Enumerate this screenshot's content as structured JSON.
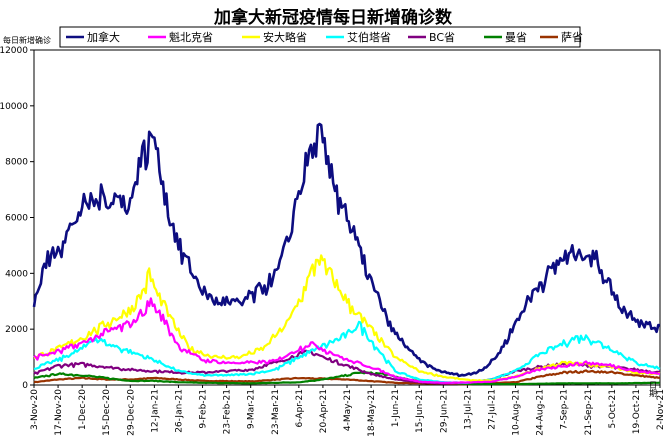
{
  "chart_data": {
    "type": "line",
    "title": "加拿大新冠疫情每日新增确诊数",
    "ylabel": "每日新增确诊",
    "xlabel": "日期",
    "ylim": [
      0,
      12000
    ],
    "yticks": [
      0,
      2000,
      4000,
      6000,
      8000,
      10000,
      12000
    ],
    "xrange": [
      "2020-11-03",
      "2021-11-02"
    ],
    "xtick_labels": [
      "3-Nov-20",
      "17-Nov-20",
      "1-Dec-20",
      "15-Dec-20",
      "29-Dec-20",
      "12-Jan-21",
      "26-Jan-21",
      "9-Feb-21",
      "23-Feb-21",
      "9-Mar-21",
      "23-Mar-21",
      "6-Apr-21",
      "20-Apr-21",
      "4-May-21",
      "18-May-21",
      "1-Jun-21",
      "15-Jun-21",
      "29-Jun-21",
      "13-Jul-21",
      "27-Jul-21",
      "10-Aug-21",
      "24-Aug-21",
      "7-Sep-21",
      "21-Sep-21",
      "5-Oct-21",
      "19-Oct-21",
      "2-Nov-21"
    ],
    "grid": false,
    "legend": "top",
    "series": [
      {
        "name": "加拿大",
        "color": "#0d0d80",
        "x": [
          "2020-11-03",
          "2020-11-10",
          "2020-11-17",
          "2020-11-24",
          "2020-12-01",
          "2020-12-08",
          "2020-12-15",
          "2020-12-22",
          "2020-12-29",
          "2021-01-03",
          "2021-01-08",
          "2021-01-12",
          "2021-01-19",
          "2021-01-26",
          "2021-02-02",
          "2021-02-09",
          "2021-02-16",
          "2021-02-23",
          "2021-03-02",
          "2021-03-09",
          "2021-03-16",
          "2021-03-23",
          "2021-03-30",
          "2021-04-06",
          "2021-04-13",
          "2021-04-18",
          "2021-04-25",
          "2021-05-02",
          "2021-05-09",
          "2021-05-16",
          "2021-05-23",
          "2021-05-30",
          "2021-06-06",
          "2021-06-13",
          "2021-06-20",
          "2021-06-27",
          "2021-07-04",
          "2021-07-11",
          "2021-07-18",
          "2021-07-25",
          "2021-08-01",
          "2021-08-08",
          "2021-08-15",
          "2021-08-22",
          "2021-08-29",
          "2021-09-05",
          "2021-09-12",
          "2021-09-19",
          "2021-09-26",
          "2021-10-03",
          "2021-10-10",
          "2021-10-17",
          "2021-10-24",
          "2021-11-02"
        ],
        "values": [
          3000,
          4400,
          5000,
          5600,
          6400,
          6600,
          6800,
          6700,
          6500,
          8000,
          8500,
          9000,
          6600,
          5000,
          4200,
          3400,
          3000,
          3000,
          2900,
          3200,
          3500,
          3900,
          5000,
          7000,
          8400,
          9000,
          7400,
          6500,
          5200,
          4000,
          3000,
          2000,
          1500,
          1000,
          700,
          500,
          400,
          350,
          450,
          700,
          1200,
          2000,
          2800,
          3500,
          4000,
          4500,
          4700,
          4800,
          4500,
          3700,
          2800,
          2500,
          2200,
          2000
        ]
      },
      {
        "name": "魁北克省",
        "color": "#ff00ff",
        "x": [
          "2020-11-03",
          "2020-11-17",
          "2020-12-01",
          "2020-12-15",
          "2020-12-29",
          "2021-01-05",
          "2021-01-10",
          "2021-01-19",
          "2021-01-26",
          "2021-02-09",
          "2021-02-23",
          "2021-03-09",
          "2021-03-23",
          "2021-04-06",
          "2021-04-13",
          "2021-04-20",
          "2021-05-04",
          "2021-05-18",
          "2021-06-01",
          "2021-06-15",
          "2021-06-29",
          "2021-07-13",
          "2021-07-27",
          "2021-08-10",
          "2021-08-24",
          "2021-09-07",
          "2021-09-21",
          "2021-10-05",
          "2021-10-19",
          "2021-11-02"
        ],
        "values": [
          1000,
          1200,
          1500,
          1900,
          2200,
          2600,
          3000,
          2200,
          1400,
          900,
          800,
          800,
          850,
          1300,
          1500,
          1300,
          900,
          650,
          300,
          120,
          80,
          90,
          120,
          300,
          550,
          700,
          800,
          700,
          500,
          400
        ]
      },
      {
        "name": "安大略省",
        "color": "#ffff00",
        "x": [
          "2020-11-03",
          "2020-11-17",
          "2020-12-01",
          "2020-12-15",
          "2020-12-29",
          "2021-01-05",
          "2021-01-09",
          "2021-01-12",
          "2021-01-19",
          "2021-01-26",
          "2021-02-02",
          "2021-02-16",
          "2021-03-02",
          "2021-03-16",
          "2021-03-30",
          "2021-04-06",
          "2021-04-13",
          "2021-04-17",
          "2021-04-24",
          "2021-05-04",
          "2021-05-18",
          "2021-06-01",
          "2021-06-15",
          "2021-06-29",
          "2021-07-13",
          "2021-07-27",
          "2021-08-10",
          "2021-08-24",
          "2021-09-07",
          "2021-09-21",
          "2021-10-05",
          "2021-10-19",
          "2021-11-02"
        ],
        "values": [
          1000,
          1300,
          1700,
          2200,
          2700,
          3300,
          4000,
          3500,
          2700,
          1900,
          1300,
          1000,
          1000,
          1300,
          2200,
          3000,
          4000,
          4600,
          4000,
          3000,
          2000,
          1000,
          500,
          300,
          180,
          150,
          300,
          600,
          800,
          750,
          650,
          450,
          400
        ]
      },
      {
        "name": "艾伯塔省",
        "color": "#00ffff",
        "x": [
          "2020-11-03",
          "2020-11-17",
          "2020-12-01",
          "2020-12-08",
          "2020-12-15",
          "2020-12-29",
          "2021-01-12",
          "2021-01-26",
          "2021-02-09",
          "2021-02-23",
          "2021-03-09",
          "2021-03-23",
          "2021-04-06",
          "2021-04-20",
          "2021-05-04",
          "2021-05-11",
          "2021-05-18",
          "2021-06-01",
          "2021-06-15",
          "2021-06-29",
          "2021-07-13",
          "2021-07-27",
          "2021-08-10",
          "2021-08-24",
          "2021-09-07",
          "2021-09-14",
          "2021-09-21",
          "2021-10-05",
          "2021-10-19",
          "2021-11-02"
        ],
        "values": [
          600,
          900,
          1300,
          1700,
          1500,
          1200,
          900,
          500,
          350,
          350,
          400,
          550,
          1000,
          1400,
          1800,
          2200,
          1600,
          500,
          200,
          100,
          80,
          200,
          500,
          1100,
          1500,
          1700,
          1700,
          1300,
          800,
          600
        ]
      },
      {
        "name": "BC省",
        "color": "#800080",
        "x": [
          "2020-11-03",
          "2020-11-17",
          "2020-12-01",
          "2020-12-15",
          "2020-12-29",
          "2021-01-12",
          "2021-01-26",
          "2021-02-09",
          "2021-02-23",
          "2021-03-09",
          "2021-03-23",
          "2021-04-06",
          "2021-04-13",
          "2021-04-20",
          "2021-05-04",
          "2021-05-18",
          "2021-06-01",
          "2021-06-15",
          "2021-06-29",
          "2021-07-13",
          "2021-07-27",
          "2021-08-10",
          "2021-08-24",
          "2021-09-07",
          "2021-09-21",
          "2021-10-05",
          "2021-10-19",
          "2021-11-02"
        ],
        "values": [
          400,
          700,
          750,
          650,
          550,
          500,
          450,
          450,
          500,
          550,
          800,
          1100,
          1200,
          1000,
          700,
          400,
          200,
          100,
          50,
          80,
          200,
          500,
          650,
          750,
          700,
          650,
          550,
          450
        ]
      },
      {
        "name": "曼省",
        "color": "#008000",
        "x": [
          "2020-11-03",
          "2020-11-17",
          "2020-12-01",
          "2020-12-15",
          "2020-12-29",
          "2021-01-12",
          "2021-01-26",
          "2021-02-09",
          "2021-03-09",
          "2021-04-06",
          "2021-04-20",
          "2021-05-04",
          "2021-05-11",
          "2021-05-25",
          "2021-06-08",
          "2021-06-22",
          "2021-07-13",
          "2021-08-10",
          "2021-09-07",
          "2021-10-05",
          "2021-11-02"
        ],
        "values": [
          250,
          400,
          350,
          250,
          150,
          150,
          100,
          80,
          60,
          100,
          200,
          350,
          450,
          400,
          200,
          80,
          40,
          30,
          60,
          60,
          80
        ]
      },
      {
        "name": "萨省",
        "color": "#993300",
        "x": [
          "2020-11-03",
          "2020-11-17",
          "2020-12-01",
          "2020-12-15",
          "2020-12-29",
          "2021-01-12",
          "2021-01-26",
          "2021-02-09",
          "2021-03-09",
          "2021-04-06",
          "2021-05-04",
          "2021-06-01",
          "2021-07-13",
          "2021-08-10",
          "2021-08-24",
          "2021-09-07",
          "2021-09-21",
          "2021-10-05",
          "2021-10-19",
          "2021-11-02"
        ],
        "values": [
          100,
          200,
          250,
          200,
          200,
          250,
          200,
          150,
          130,
          250,
          200,
          80,
          30,
          100,
          300,
          450,
          500,
          450,
          350,
          250
        ]
      }
    ]
  }
}
